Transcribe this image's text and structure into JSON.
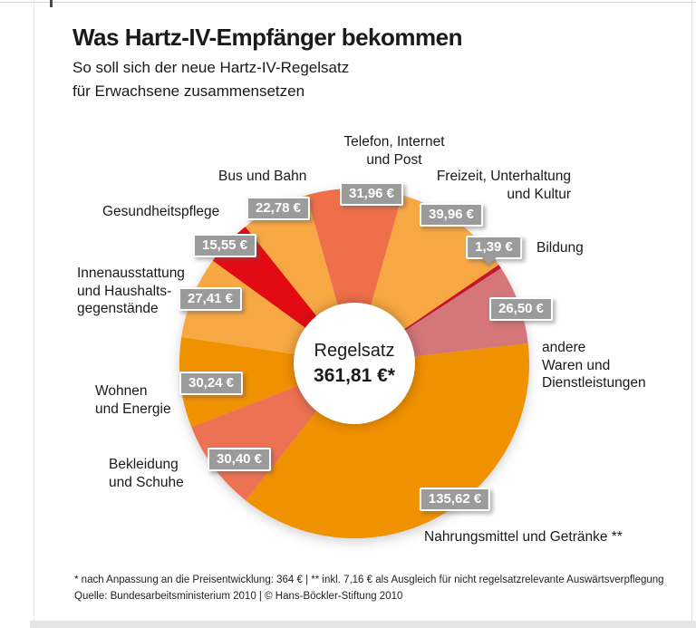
{
  "header": {
    "title": "Was Hartz-IV-Empfänger bekommen",
    "subtitle_line1": "So soll sich der neue Hartz-IV-Regelsatz",
    "subtitle_line2": "für Erwachsene zusammensetzen"
  },
  "center": {
    "label": "Regelsatz",
    "value": "361,81 €*"
  },
  "footnote": {
    "line1": "* nach Anpassung an die Preisentwicklung: 364 € | ** inkl. 7,16 € als Ausgleich für nicht regelsatzrelevante Auswärtsverpflegung",
    "line2": "Quelle: Bundesarbeitsministerium 2010 | © Hans-Böckler-Stiftung 2010"
  },
  "chart_data": {
    "type": "pie",
    "title": "Was Hartz-IV-Empfänger bekommen",
    "subtitle": "So soll sich der neue Hartz-IV-Regelsatz für Erwachsene zusammensetzen",
    "total_value_eur": 361.81,
    "center_label": "Regelsatz",
    "center_value_label": "361,81 €*",
    "start_angle_deg": -15.9,
    "layout": {
      "donut": true,
      "first_segment_centered_at": "12 o'clock",
      "direction": "clockwise"
    },
    "segments": [
      {
        "id": "telefon",
        "label": "Telefon, Internet und Post",
        "label_lines": [
          "Telefon, Internet",
          "und Post"
        ],
        "value_eur": 31.96,
        "value_label": "31,96 €",
        "color": "#ee6f49"
      },
      {
        "id": "freizeit",
        "label": "Freizeit, Unterhaltung und Kultur",
        "label_lines": [
          "Freizeit, Unterhaltung",
          "und Kultur"
        ],
        "value_eur": 39.96,
        "value_label": "39,96 €",
        "color": "#f7a843"
      },
      {
        "id": "bildung",
        "label": "Bildung",
        "label_lines": [
          "Bildung"
        ],
        "value_eur": 1.39,
        "value_label": "1,39 €",
        "color": "#c5162b"
      },
      {
        "id": "andere-waren",
        "label": "andere Waren und Dienstleistungen",
        "label_lines": [
          "andere",
          "Waren und",
          "Dienstleistungen"
        ],
        "value_eur": 26.5,
        "value_label": "26,50 €",
        "color": "#d4767a"
      },
      {
        "id": "nahrungsmittel",
        "label": "Nahrungsmittel und Getränke **",
        "label_lines": [
          "Nahrungsmittel und Getränke **"
        ],
        "value_eur": 135.62,
        "value_label": "135,62 €",
        "color": "#f09100"
      },
      {
        "id": "bekleidung",
        "label": "Bekleidung und Schuhe",
        "label_lines": [
          "Bekleidung",
          "und Schuhe"
        ],
        "value_eur": 30.4,
        "value_label": "30,40 €",
        "color": "#ed7254"
      },
      {
        "id": "wohnen",
        "label": "Wohnen und Energie",
        "label_lines": [
          "Wohnen",
          "und Energie"
        ],
        "value_eur": 30.24,
        "value_label": "30,24 €",
        "color": "#f09100"
      },
      {
        "id": "innenausstattung",
        "label": "Innenausstattung und Haushaltsgegenstände",
        "label_lines": [
          "Innenausstattung",
          "und Haushalts-",
          "gegenstände"
        ],
        "value_eur": 27.41,
        "value_label": "27,41 €",
        "color": "#f7a843"
      },
      {
        "id": "gesundheitspflege",
        "label": "Gesundheitspflege",
        "label_lines": [
          "Gesundheitspflege"
        ],
        "value_eur": 15.55,
        "value_label": "15,55 €",
        "color": "#e30b13"
      },
      {
        "id": "bus-und-bahn",
        "label": "Bus und Bahn",
        "label_lines": [
          "Bus und Bahn"
        ],
        "value_eur": 22.78,
        "value_label": "22,78 €",
        "color": "#f7a843"
      }
    ]
  }
}
